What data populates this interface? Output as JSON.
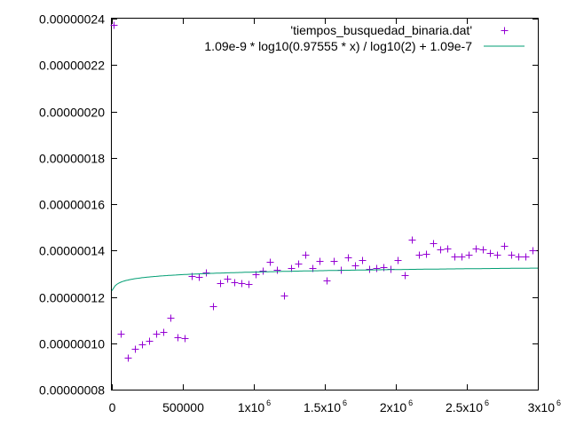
{
  "chart_data": {
    "type": "scatter",
    "title": "",
    "xlabel": "",
    "ylabel": "",
    "xlim": [
      0,
      3000000
    ],
    "ylim": [
      8e-08,
      2.4e-07
    ],
    "grid": false,
    "legend_position": "top-right",
    "x_tick_labels": [
      {
        "value": 0,
        "base": "0",
        "exp": ""
      },
      {
        "value": 500000,
        "base": "500000",
        "exp": ""
      },
      {
        "value": 1000000,
        "base": "1x10",
        "exp": "6"
      },
      {
        "value": 1500000,
        "base": "1.5x10",
        "exp": "6"
      },
      {
        "value": 2000000,
        "base": "2x10",
        "exp": "6"
      },
      {
        "value": 2500000,
        "base": "2.5x10",
        "exp": "6"
      },
      {
        "value": 3000000,
        "base": "3x10",
        "exp": "6"
      }
    ],
    "y_tick_labels": [
      {
        "value": 8e-08,
        "label": "0.00000008"
      },
      {
        "value": 1e-07,
        "label": "0.00000010"
      },
      {
        "value": 1.2e-07,
        "label": "0.00000012"
      },
      {
        "value": 1.4e-07,
        "label": "0.00000014"
      },
      {
        "value": 1.6e-07,
        "label": "0.00000016"
      },
      {
        "value": 1.8e-07,
        "label": "0.00000018"
      },
      {
        "value": 2e-07,
        "label": "0.00000020"
      },
      {
        "value": 2.2e-07,
        "label": "0.00000022"
      },
      {
        "value": 2.4e-07,
        "label": "0.00000024"
      }
    ],
    "series": [
      {
        "name": "'tiempos_busquedad_binaria.dat'",
        "kind": "points",
        "marker": "plus",
        "color": "#9400d3",
        "points": [
          [
            10000,
            2.375e-07
          ],
          [
            60000,
            1.043e-07
          ],
          [
            110000,
            9.38e-08
          ],
          [
            160000,
            9.77e-08
          ],
          [
            210000,
            9.95e-08
          ],
          [
            260000,
            1.01e-07
          ],
          [
            310000,
            1.043e-07
          ],
          [
            360000,
            1.05e-07
          ],
          [
            410000,
            1.11e-07
          ],
          [
            460000,
            1.025e-07
          ],
          [
            510000,
            1.022e-07
          ],
          [
            560000,
            1.29e-07
          ],
          [
            610000,
            1.287e-07
          ],
          [
            660000,
            1.305e-07
          ],
          [
            710000,
            1.16e-07
          ],
          [
            760000,
            1.26e-07
          ],
          [
            810000,
            1.28e-07
          ],
          [
            860000,
            1.265e-07
          ],
          [
            910000,
            1.26e-07
          ],
          [
            960000,
            1.255e-07
          ],
          [
            1010000,
            1.296e-07
          ],
          [
            1060000,
            1.313e-07
          ],
          [
            1110000,
            1.35e-07
          ],
          [
            1160000,
            1.315e-07
          ],
          [
            1210000,
            1.205e-07
          ],
          [
            1260000,
            1.326e-07
          ],
          [
            1310000,
            1.345e-07
          ],
          [
            1360000,
            1.38e-07
          ],
          [
            1410000,
            1.325e-07
          ],
          [
            1460000,
            1.356e-07
          ],
          [
            1510000,
            1.27e-07
          ],
          [
            1560000,
            1.355e-07
          ],
          [
            1610000,
            1.315e-07
          ],
          [
            1660000,
            1.372e-07
          ],
          [
            1710000,
            1.337e-07
          ],
          [
            1760000,
            1.36e-07
          ],
          [
            1810000,
            1.32e-07
          ],
          [
            1860000,
            1.325e-07
          ],
          [
            1910000,
            1.33e-07
          ],
          [
            1960000,
            1.32e-07
          ],
          [
            2010000,
            1.36e-07
          ],
          [
            2060000,
            1.295e-07
          ],
          [
            2110000,
            1.445e-07
          ],
          [
            2160000,
            1.38e-07
          ],
          [
            2210000,
            1.385e-07
          ],
          [
            2260000,
            1.43e-07
          ],
          [
            2310000,
            1.405e-07
          ],
          [
            2360000,
            1.41e-07
          ],
          [
            2410000,
            1.375e-07
          ],
          [
            2460000,
            1.375e-07
          ],
          [
            2510000,
            1.38e-07
          ],
          [
            2560000,
            1.41e-07
          ],
          [
            2610000,
            1.405e-07
          ],
          [
            2660000,
            1.39e-07
          ],
          [
            2710000,
            1.38e-07
          ],
          [
            2760000,
            1.42e-07
          ],
          [
            2810000,
            1.38e-07
          ],
          [
            2860000,
            1.375e-07
          ],
          [
            2910000,
            1.375e-07
          ],
          [
            2960000,
            1.4e-07
          ]
        ]
      },
      {
        "name": "1.09e-9 * log10(0.97555 * x) / log10(2) + 1.09e-7",
        "kind": "function",
        "color": "#009e73",
        "function": {
          "a": 1.09e-09,
          "k": 0.97555,
          "c": 1.09e-07
        }
      }
    ]
  }
}
